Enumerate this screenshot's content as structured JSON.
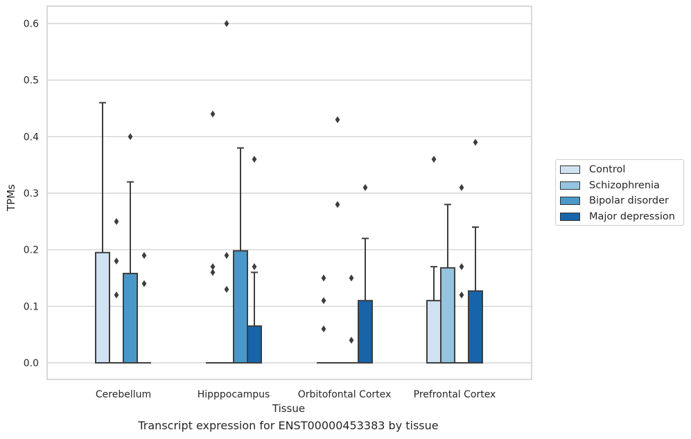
{
  "chart_data": {
    "type": "box",
    "title": "",
    "caption": "Transcript expression for ENST00000453383 by tissue",
    "xlabel": "Tissue",
    "ylabel": "TPMs",
    "ylim": [
      -0.03,
      0.63
    ],
    "yticks": [
      0.0,
      0.1,
      0.2,
      0.3,
      0.4,
      0.5,
      0.6
    ],
    "ytick_labels": [
      "0.0",
      "0.1",
      "0.2",
      "0.3",
      "0.4",
      "0.5",
      "0.6"
    ],
    "grid": "horizontal",
    "legend_position": "right",
    "categories": [
      "Cerebellum",
      "Hipppocampus",
      "Orbitofontal Cortex",
      "Prefrontal Cortex"
    ],
    "series": [
      {
        "name": "Control",
        "color": "#d0e1f2",
        "boxes": [
          {
            "q1": 0.0,
            "median": 0.0,
            "q3": 0.195,
            "whisker_low": 0.0,
            "whisker_high": 0.46,
            "outliers": []
          },
          {
            "q1": 0.0,
            "median": 0.0,
            "q3": 0.0,
            "whisker_low": 0.0,
            "whisker_high": 0.0,
            "outliers": [
              0.17,
              0.16,
              0.44
            ]
          },
          {
            "q1": 0.0,
            "median": 0.0,
            "q3": 0.0,
            "whisker_low": 0.0,
            "whisker_high": 0.0,
            "outliers": [
              0.15,
              0.11,
              0.06
            ]
          },
          {
            "q1": 0.0,
            "median": 0.0,
            "q3": 0.11,
            "whisker_low": 0.0,
            "whisker_high": 0.17,
            "outliers": [
              0.36
            ]
          }
        ]
      },
      {
        "name": "Schizophrenia",
        "color": "#94c4df",
        "boxes": [
          {
            "q1": 0.0,
            "median": 0.0,
            "q3": 0.0,
            "whisker_low": 0.0,
            "whisker_high": 0.0,
            "outliers": [
              0.25,
              0.18,
              0.12
            ]
          },
          {
            "q1": 0.0,
            "median": 0.0,
            "q3": 0.0,
            "whisker_low": 0.0,
            "whisker_high": 0.0,
            "outliers": [
              0.6,
              0.19,
              0.13
            ]
          },
          {
            "q1": 0.0,
            "median": 0.0,
            "q3": 0.0,
            "whisker_low": 0.0,
            "whisker_high": 0.0,
            "outliers": [
              0.43,
              0.28
            ]
          },
          {
            "q1": 0.0,
            "median": 0.0,
            "q3": 0.168,
            "whisker_low": 0.0,
            "whisker_high": 0.28,
            "outliers": []
          }
        ]
      },
      {
        "name": "Bipolar disorder",
        "color": "#4a98c9",
        "boxes": [
          {
            "q1": 0.0,
            "median": 0.0,
            "q3": 0.158,
            "whisker_low": 0.0,
            "whisker_high": 0.32,
            "outliers": [
              0.4
            ]
          },
          {
            "q1": 0.0,
            "median": 0.0,
            "q3": 0.198,
            "whisker_low": 0.0,
            "whisker_high": 0.38,
            "outliers": []
          },
          {
            "q1": 0.0,
            "median": 0.0,
            "q3": 0.0,
            "whisker_low": 0.0,
            "whisker_high": 0.0,
            "outliers": [
              0.15,
              0.04
            ]
          },
          {
            "q1": 0.0,
            "median": 0.0,
            "q3": 0.0,
            "whisker_low": 0.0,
            "whisker_high": 0.0,
            "outliers": [
              0.31,
              0.17,
              0.12
            ]
          }
        ]
      },
      {
        "name": "Major depression",
        "color": "#1764ab",
        "boxes": [
          {
            "q1": 0.0,
            "median": 0.0,
            "q3": 0.0,
            "whisker_low": 0.0,
            "whisker_high": 0.0,
            "outliers": [
              0.19,
              0.14
            ]
          },
          {
            "q1": 0.0,
            "median": 0.0,
            "q3": 0.065,
            "whisker_low": 0.0,
            "whisker_high": 0.16,
            "outliers": [
              0.36,
              0.17
            ]
          },
          {
            "q1": 0.0,
            "median": 0.0,
            "q3": 0.11,
            "whisker_low": 0.0,
            "whisker_high": 0.22,
            "outliers": [
              0.31
            ]
          },
          {
            "q1": 0.0,
            "median": 0.0,
            "q3": 0.127,
            "whisker_low": 0.0,
            "whisker_high": 0.24,
            "outliers": [
              0.39
            ]
          }
        ]
      }
    ]
  }
}
